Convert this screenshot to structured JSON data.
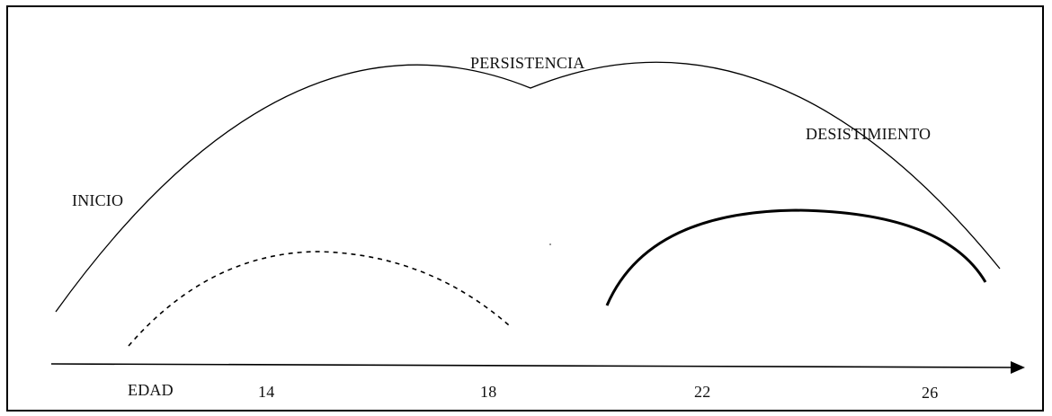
{
  "labels": {
    "persistencia": "PERSISTENCIA",
    "desistimiento": "DESISTIMIENTO",
    "inicio": "INICIO"
  },
  "axis": {
    "label": "EDAD",
    "ticks": [
      "14",
      "18",
      "22",
      "26"
    ]
  },
  "colors": {
    "stroke": "#000000",
    "text": "#111111",
    "background": "#ffffff"
  }
}
